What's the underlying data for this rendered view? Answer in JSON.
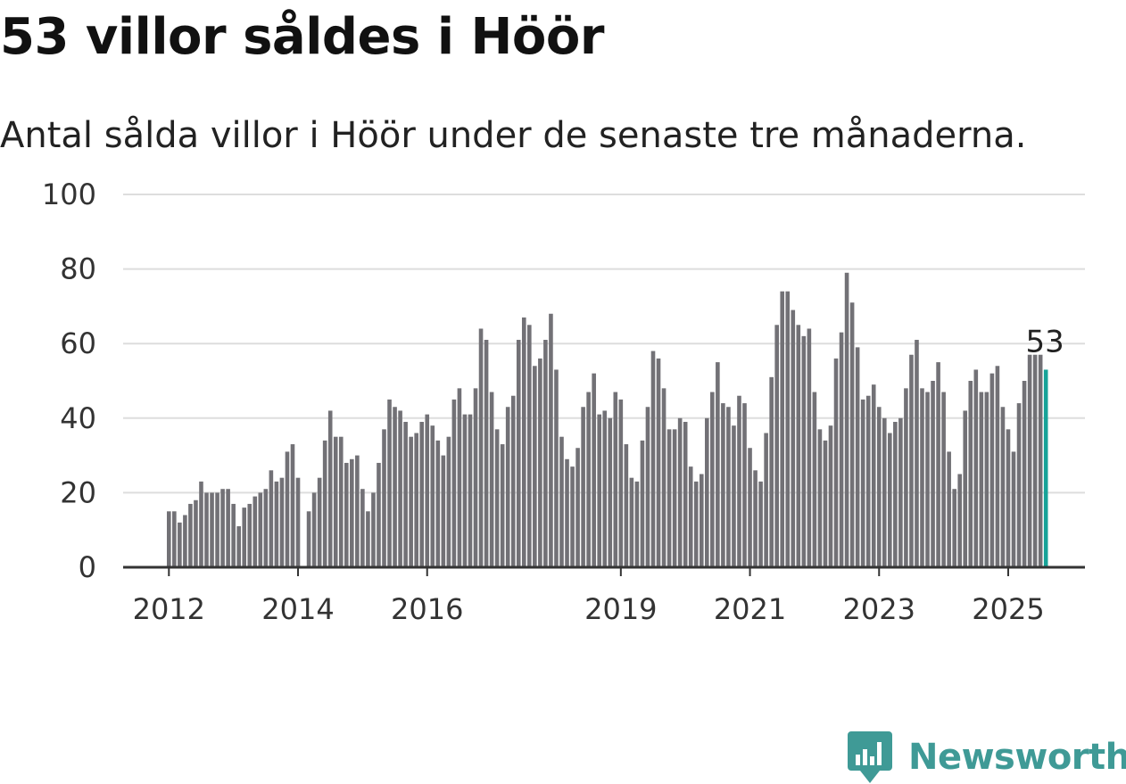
{
  "title": "53 villor såldes i Höör",
  "subtitle": "Antal sålda villor i Höör under de senaste tre månaderna.",
  "brand": {
    "name": "Newsworthy",
    "color": "#3f9a96"
  },
  "colors": {
    "bar": "#727176",
    "highlight": "#17a398",
    "grid": "#dddddd",
    "axis": "#333333"
  },
  "chart_data": {
    "type": "bar",
    "title": "53 villor såldes i Höör",
    "subtitle": "Antal sålda villor i Höör under de senaste tre månaderna.",
    "xlabel": "",
    "ylabel": "",
    "ylim": [
      0,
      100
    ],
    "yticks": [
      0,
      20,
      40,
      60,
      80,
      100
    ],
    "grid": true,
    "x_ticks": [
      {
        "label": "2012",
        "index": 0
      },
      {
        "label": "2014",
        "index": 24
      },
      {
        "label": "2016",
        "index": 48
      },
      {
        "label": "2019",
        "index": 84
      },
      {
        "label": "2021",
        "index": 108
      },
      {
        "label": "2023",
        "index": 132
      },
      {
        "label": "2025",
        "index": 156
      }
    ],
    "start": "2012-01",
    "highlight_label": "53",
    "values": [
      15,
      15,
      12,
      14,
      17,
      18,
      23,
      20,
      20,
      20,
      21,
      21,
      17,
      11,
      16,
      17,
      19,
      20,
      21,
      26,
      23,
      24,
      31,
      33,
      24,
      null,
      15,
      20,
      24,
      34,
      42,
      35,
      35,
      28,
      29,
      30,
      21,
      15,
      20,
      28,
      37,
      45,
      43,
      42,
      39,
      35,
      36,
      39,
      41,
      38,
      34,
      30,
      35,
      45,
      48,
      41,
      41,
      48,
      64,
      61,
      47,
      37,
      33,
      43,
      46,
      61,
      67,
      65,
      54,
      56,
      61,
      68,
      53,
      35,
      29,
      27,
      32,
      43,
      47,
      52,
      41,
      42,
      40,
      47,
      45,
      33,
      24,
      23,
      34,
      43,
      58,
      56,
      48,
      37,
      37,
      40,
      39,
      27,
      23,
      25,
      40,
      47,
      55,
      44,
      43,
      38,
      46,
      44,
      32,
      26,
      23,
      36,
      51,
      65,
      74,
      74,
      69,
      65,
      62,
      64,
      47,
      37,
      34,
      38,
      56,
      63,
      79,
      71,
      59,
      45,
      46,
      49,
      43,
      40,
      36,
      39,
      40,
      48,
      57,
      61,
      48,
      47,
      50,
      55,
      47,
      31,
      21,
      25,
      42,
      50,
      53,
      47,
      47,
      52,
      54,
      43,
      37,
      31,
      44,
      50,
      57,
      57,
      57,
      53
    ],
    "highlight_index": 163
  }
}
